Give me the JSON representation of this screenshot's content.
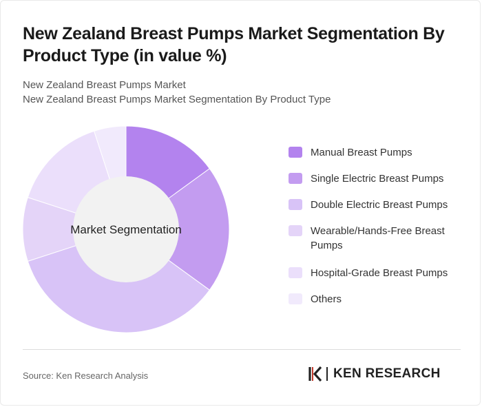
{
  "header": {
    "title": "New Zealand Breast Pumps Market Segmentation By Product Type (in value %)",
    "subtitle_line1": "New Zealand Breast Pumps Market",
    "subtitle_line2": "New Zealand Breast Pumps Market Segmentation By Product Type"
  },
  "chart_data": {
    "type": "pie",
    "variant": "donut",
    "center_label": "Market Segmentation",
    "categories": [
      "Manual Breast Pumps",
      "Single Electric Breast Pumps",
      "Double Electric Breast Pumps",
      "Wearable/Hands-Free Breast Pumps",
      "Hospital-Grade Breast Pumps",
      "Others"
    ],
    "values": [
      15,
      20,
      35,
      10,
      15,
      5
    ],
    "colors": [
      "#b383ee",
      "#c39cf0",
      "#d8c3f7",
      "#e4d4f8",
      "#ebdffb",
      "#f1eafc"
    ],
    "legend_position": "right"
  },
  "footer": {
    "source": "Source: Ken Research Analysis",
    "logo_text": "KEN RESEARCH",
    "logo_icon": "ken-research-logo-icon"
  }
}
